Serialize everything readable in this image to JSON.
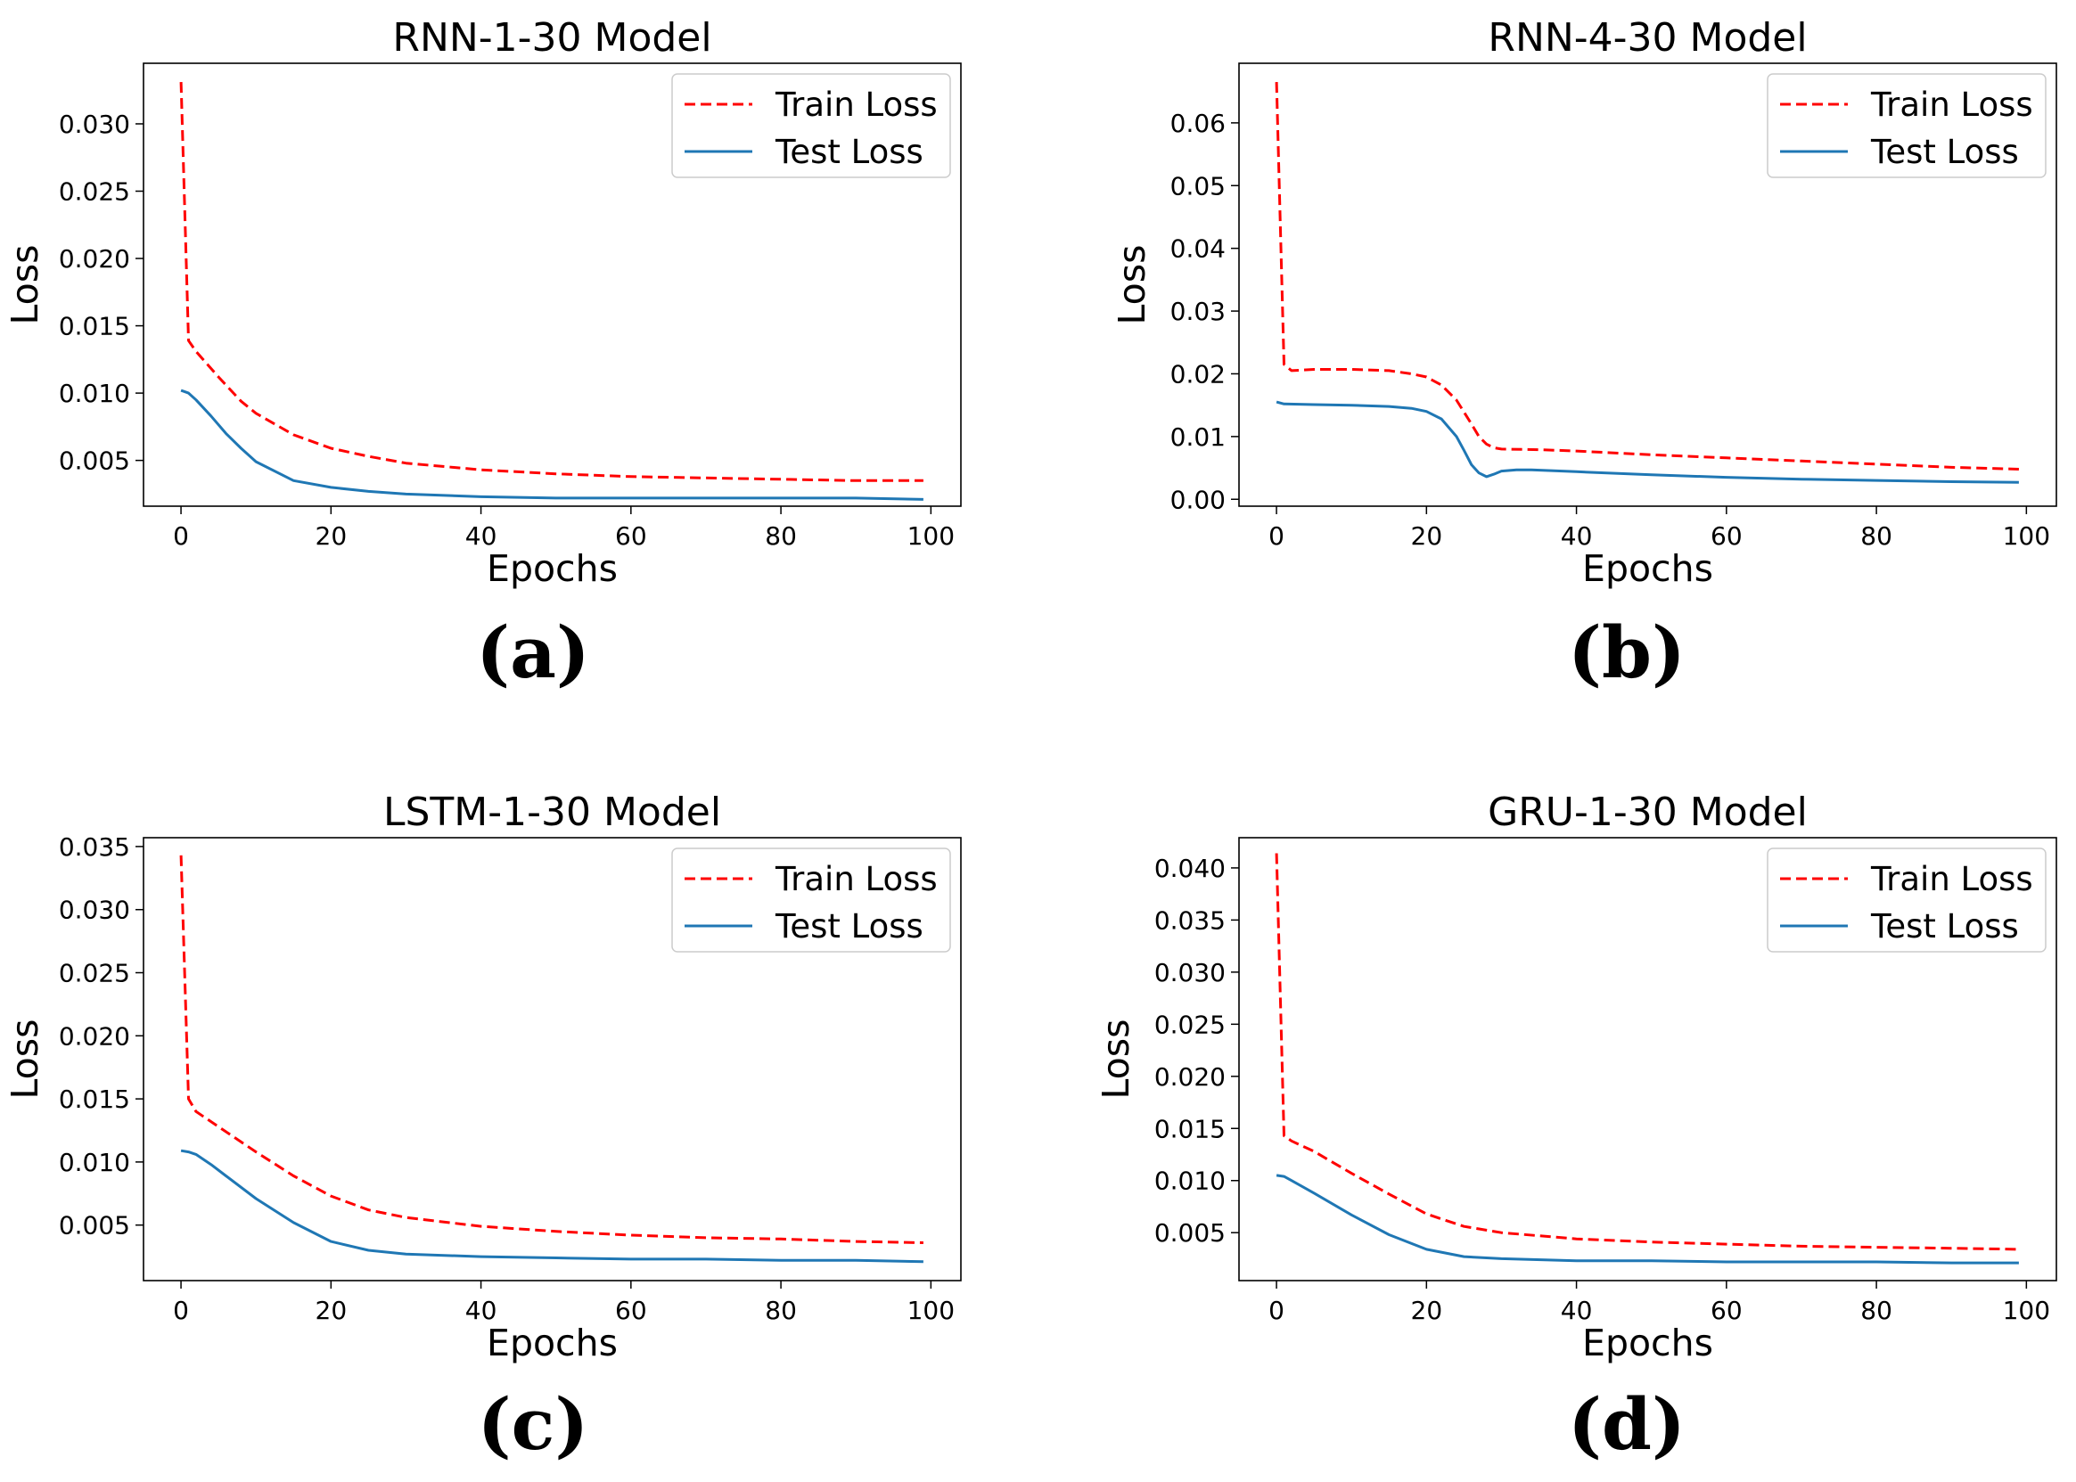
{
  "figure": {
    "captions": [
      "(a)",
      "(b)",
      "(c)",
      "(d)"
    ]
  },
  "colors": {
    "train": "#ff0000",
    "test": "#1f77b4",
    "axes": "#000000"
  },
  "chart_data": [
    {
      "type": "line",
      "panel": "a",
      "title": "RNN-1-30 Model",
      "xlabel": "Epochs",
      "ylabel": "Loss",
      "xlim": [
        -5,
        104
      ],
      "ylim": [
        0.0016,
        0.0345
      ],
      "xticks": [
        0,
        20,
        40,
        60,
        80,
        100
      ],
      "yticks": [
        0.005,
        0.01,
        0.015,
        0.02,
        0.025,
        0.03
      ],
      "ytick_labels": [
        "0.005",
        "0.010",
        "0.015",
        "0.020",
        "0.025",
        "0.030"
      ],
      "legend": {
        "location": "top-right",
        "entries": [
          "Train Loss",
          "Test Loss"
        ]
      },
      "series": [
        {
          "name": "Train Loss",
          "style": "dashed",
          "x": [
            0,
            1,
            2,
            5,
            8,
            10,
            15,
            20,
            25,
            30,
            40,
            50,
            60,
            70,
            80,
            90,
            99
          ],
          "values": [
            0.0331,
            0.0139,
            0.0131,
            0.0112,
            0.0094,
            0.0085,
            0.0069,
            0.0059,
            0.0053,
            0.0048,
            0.0043,
            0.004,
            0.0038,
            0.0037,
            0.0036,
            0.0035,
            0.0035
          ]
        },
        {
          "name": "Test Loss",
          "style": "solid",
          "x": [
            0,
            1,
            2,
            4,
            6,
            8,
            10,
            15,
            20,
            25,
            30,
            40,
            50,
            60,
            70,
            80,
            90,
            99
          ],
          "values": [
            0.0102,
            0.01,
            0.0095,
            0.0083,
            0.007,
            0.0059,
            0.0049,
            0.0035,
            0.003,
            0.0027,
            0.0025,
            0.0023,
            0.0022,
            0.0022,
            0.0022,
            0.0022,
            0.0022,
            0.0021
          ]
        }
      ]
    },
    {
      "type": "line",
      "panel": "b",
      "title": "RNN-4-30 Model",
      "xlabel": "Epochs",
      "ylabel": "Loss",
      "xlim": [
        -5,
        104
      ],
      "ylim": [
        -0.0011,
        0.0695
      ],
      "xticks": [
        0,
        20,
        40,
        60,
        80,
        100
      ],
      "yticks": [
        0.0,
        0.01,
        0.02,
        0.03,
        0.04,
        0.05,
        0.06
      ],
      "ytick_labels": [
        "0.00",
        "0.01",
        "0.02",
        "0.03",
        "0.04",
        "0.05",
        "0.06"
      ],
      "legend": {
        "location": "top-right",
        "entries": [
          "Train Loss",
          "Test Loss"
        ]
      },
      "series": [
        {
          "name": "Train Loss",
          "style": "dashed",
          "x": [
            0,
            1,
            2,
            5,
            10,
            15,
            18,
            20,
            22,
            24,
            26,
            27,
            28,
            29,
            30,
            35,
            40,
            50,
            60,
            70,
            80,
            90,
            99
          ],
          "values": [
            0.0665,
            0.0215,
            0.0205,
            0.0207,
            0.0207,
            0.0205,
            0.02,
            0.0195,
            0.0182,
            0.0158,
            0.012,
            0.01,
            0.0088,
            0.0082,
            0.008,
            0.0079,
            0.0077,
            0.0071,
            0.0066,
            0.0061,
            0.0056,
            0.0051,
            0.0048
          ]
        },
        {
          "name": "Test Loss",
          "style": "solid",
          "x": [
            0,
            1,
            5,
            10,
            15,
            18,
            20,
            22,
            24,
            25,
            26,
            27,
            28,
            29,
            30,
            32,
            34,
            40,
            50,
            60,
            70,
            80,
            90,
            99
          ],
          "values": [
            0.0155,
            0.0152,
            0.0151,
            0.015,
            0.0148,
            0.0145,
            0.014,
            0.0128,
            0.01,
            0.0078,
            0.0055,
            0.0042,
            0.0036,
            0.004,
            0.0045,
            0.0047,
            0.0047,
            0.0044,
            0.0039,
            0.0035,
            0.0032,
            0.003,
            0.0028,
            0.0027
          ]
        }
      ]
    },
    {
      "type": "line",
      "panel": "c",
      "title": "LSTM-1-30 Model",
      "xlabel": "Epochs",
      "ylabel": "Loss",
      "xlim": [
        -5,
        104
      ],
      "ylim": [
        0.0006,
        0.0357
      ],
      "xticks": [
        0,
        20,
        40,
        60,
        80,
        100
      ],
      "yticks": [
        0.005,
        0.01,
        0.015,
        0.02,
        0.025,
        0.03,
        0.035
      ],
      "ytick_labels": [
        "0.005",
        "0.010",
        "0.015",
        "0.020",
        "0.025",
        "0.030",
        "0.035"
      ],
      "legend": {
        "location": "top-right",
        "entries": [
          "Train Loss",
          "Test Loss"
        ]
      },
      "series": [
        {
          "name": "Train Loss",
          "style": "dashed",
          "x": [
            0,
            1,
            2,
            5,
            10,
            15,
            20,
            25,
            30,
            40,
            50,
            60,
            70,
            80,
            90,
            99
          ],
          "values": [
            0.0343,
            0.015,
            0.014,
            0.0128,
            0.0108,
            0.0089,
            0.0073,
            0.0062,
            0.0056,
            0.0049,
            0.0045,
            0.0042,
            0.004,
            0.0039,
            0.0037,
            0.0036
          ]
        },
        {
          "name": "Test Loss",
          "style": "solid",
          "x": [
            0,
            1,
            2,
            4,
            6,
            10,
            15,
            20,
            25,
            30,
            40,
            50,
            60,
            70,
            80,
            90,
            99
          ],
          "values": [
            0.0109,
            0.0108,
            0.0106,
            0.0098,
            0.0089,
            0.0071,
            0.0052,
            0.0037,
            0.003,
            0.0027,
            0.0025,
            0.0024,
            0.0023,
            0.0023,
            0.0022,
            0.0022,
            0.0021
          ]
        }
      ]
    },
    {
      "type": "line",
      "panel": "d",
      "title": "GRU-1-30 Model",
      "xlabel": "Epochs",
      "ylabel": "Loss",
      "xlim": [
        -5,
        104
      ],
      "ylim": [
        0.0004,
        0.0429
      ],
      "xticks": [
        0,
        20,
        40,
        60,
        80,
        100
      ],
      "yticks": [
        0.005,
        0.01,
        0.015,
        0.02,
        0.025,
        0.03,
        0.035,
        0.04
      ],
      "ytick_labels": [
        "0.005",
        "0.010",
        "0.015",
        "0.020",
        "0.025",
        "0.030",
        "0.035",
        "0.040"
      ],
      "legend": {
        "location": "top-right",
        "entries": [
          "Train Loss",
          "Test Loss"
        ]
      },
      "series": [
        {
          "name": "Train Loss",
          "style": "dashed",
          "x": [
            0,
            1,
            2,
            5,
            10,
            15,
            20,
            25,
            30,
            40,
            50,
            60,
            70,
            80,
            90,
            99
          ],
          "values": [
            0.0414,
            0.0143,
            0.0138,
            0.0128,
            0.0107,
            0.0087,
            0.0068,
            0.0056,
            0.005,
            0.0044,
            0.0041,
            0.0039,
            0.0037,
            0.0036,
            0.0035,
            0.0034
          ]
        },
        {
          "name": "Test Loss",
          "style": "solid",
          "x": [
            0,
            1,
            2,
            5,
            10,
            15,
            20,
            25,
            30,
            40,
            50,
            60,
            70,
            80,
            90,
            99
          ],
          "values": [
            0.0105,
            0.0104,
            0.01,
            0.0088,
            0.0067,
            0.0048,
            0.0034,
            0.0027,
            0.0025,
            0.0023,
            0.0023,
            0.0022,
            0.0022,
            0.0022,
            0.0021,
            0.0021
          ]
        }
      ]
    }
  ]
}
